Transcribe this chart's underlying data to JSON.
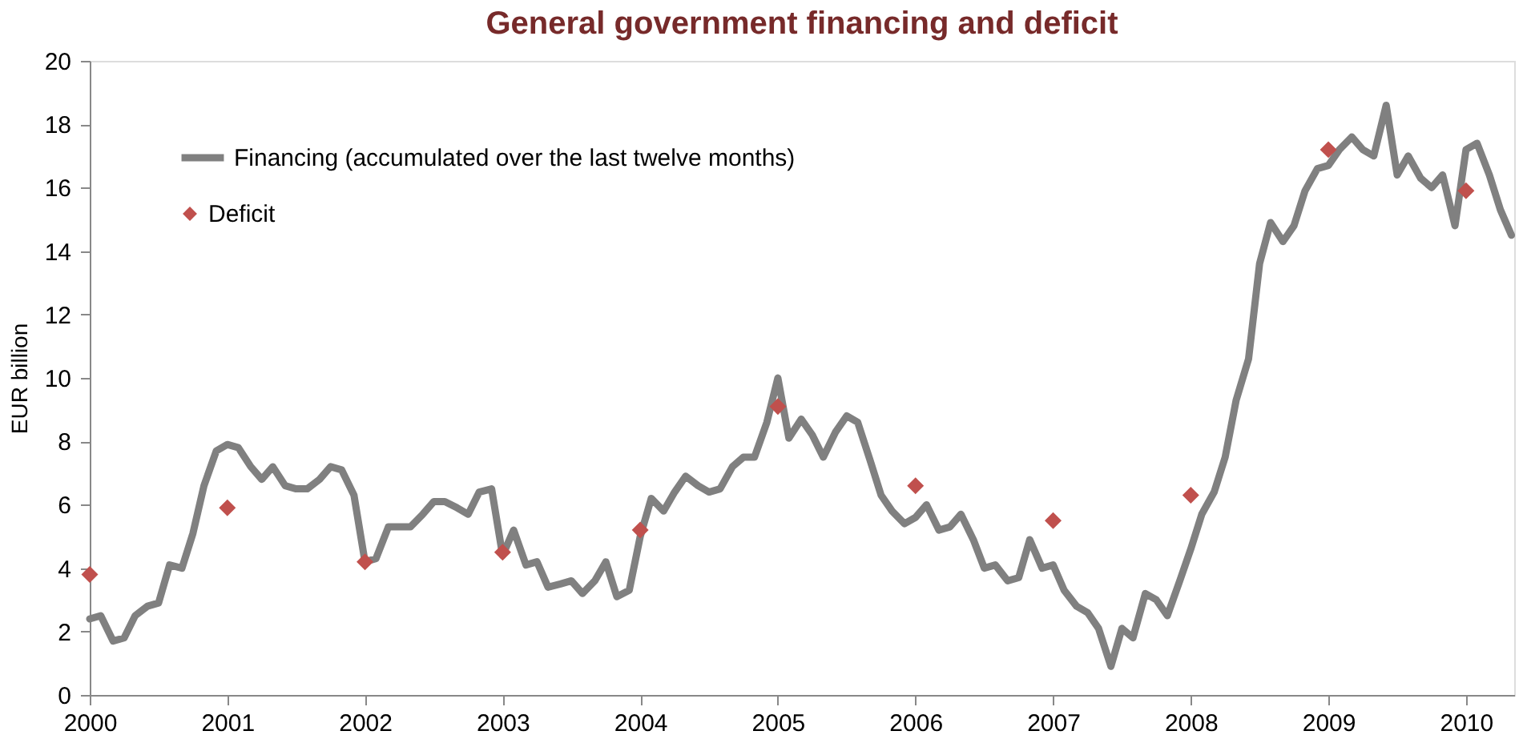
{
  "chart_data": {
    "type": "line",
    "title": "General government financing and deficit",
    "ylabel": "EUR billion",
    "xlim": [
      2000,
      2010.35
    ],
    "xticks": [
      2000,
      2001,
      2002,
      2003,
      2004,
      2005,
      2006,
      2007,
      2008,
      2009,
      2010
    ],
    "ylim": [
      0,
      20
    ],
    "yticks": [
      0,
      2,
      4,
      6,
      8,
      10,
      12,
      14,
      16,
      18,
      20
    ],
    "grid": false,
    "legend": "top left",
    "series": [
      {
        "name": "Financing (accumulated over the last twelve months)",
        "color": "#808080",
        "marker": "none",
        "line_style": "solid",
        "x": [
          2000.0,
          2000.08,
          2000.17,
          2000.25,
          2000.33,
          2000.42,
          2000.5,
          2000.58,
          2000.67,
          2000.75,
          2000.83,
          2000.92,
          2001.0,
          2001.08,
          2001.17,
          2001.25,
          2001.33,
          2001.42,
          2001.5,
          2001.58,
          2001.67,
          2001.75,
          2001.83,
          2001.92,
          2002.0,
          2002.08,
          2002.17,
          2002.25,
          2002.33,
          2002.42,
          2002.5,
          2002.58,
          2002.67,
          2002.75,
          2002.83,
          2002.92,
          2003.0,
          2003.08,
          2003.17,
          2003.25,
          2003.33,
          2003.42,
          2003.5,
          2003.58,
          2003.67,
          2003.75,
          2003.83,
          2003.92,
          2004.0,
          2004.08,
          2004.17,
          2004.25,
          2004.33,
          2004.42,
          2004.5,
          2004.58,
          2004.67,
          2004.75,
          2004.83,
          2004.92,
          2005.0,
          2005.08,
          2005.17,
          2005.25,
          2005.33,
          2005.42,
          2005.5,
          2005.58,
          2005.67,
          2005.75,
          2005.83,
          2005.92,
          2006.0,
          2006.08,
          2006.17,
          2006.25,
          2006.33,
          2006.42,
          2006.5,
          2006.58,
          2006.67,
          2006.75,
          2006.83,
          2006.92,
          2007.0,
          2007.08,
          2007.17,
          2007.25,
          2007.33,
          2007.42,
          2007.5,
          2007.58,
          2007.67,
          2007.75,
          2007.83,
          2007.92,
          2008.0,
          2008.08,
          2008.17,
          2008.25,
          2008.33,
          2008.42,
          2008.5,
          2008.58,
          2008.67,
          2008.75,
          2008.83,
          2008.92,
          2009.0,
          2009.08,
          2009.17,
          2009.25,
          2009.33,
          2009.42,
          2009.5,
          2009.58,
          2009.67,
          2009.75,
          2009.83,
          2009.92,
          2010.0,
          2010.08,
          2010.17,
          2010.25,
          2010.33
        ],
        "values": [
          2.4,
          2.5,
          1.7,
          1.8,
          2.5,
          2.8,
          2.9,
          4.1,
          4.0,
          5.1,
          6.6,
          7.7,
          7.9,
          7.8,
          7.2,
          6.8,
          7.2,
          6.6,
          6.5,
          6.5,
          6.8,
          7.2,
          7.1,
          6.3,
          4.2,
          4.3,
          5.3,
          5.3,
          5.3,
          5.7,
          6.1,
          6.1,
          5.9,
          5.7,
          6.4,
          6.5,
          4.4,
          5.2,
          4.1,
          4.2,
          3.4,
          3.5,
          3.6,
          3.2,
          3.6,
          4.2,
          3.1,
          3.3,
          5.0,
          6.2,
          5.8,
          6.4,
          6.9,
          6.6,
          6.4,
          6.5,
          7.2,
          7.5,
          7.5,
          8.6,
          10.0,
          8.1,
          8.7,
          8.2,
          7.5,
          8.3,
          8.8,
          8.6,
          7.4,
          6.3,
          5.8,
          5.4,
          5.6,
          6.0,
          5.2,
          5.3,
          5.7,
          4.9,
          4.0,
          4.1,
          3.6,
          3.7,
          4.9,
          4.0,
          4.1,
          3.3,
          2.8,
          2.6,
          2.1,
          0.9,
          2.1,
          1.8,
          3.2,
          3.0,
          2.5,
          3.6,
          4.6,
          5.7,
          6.4,
          7.5,
          9.3,
          10.6,
          13.6,
          14.9,
          14.3,
          14.8,
          15.9,
          16.6,
          16.7,
          17.2,
          17.6,
          17.2,
          17.0,
          18.6,
          16.4,
          17.0,
          16.3,
          16.0,
          16.4,
          14.8,
          17.2,
          17.4,
          16.4,
          15.3,
          14.5
        ]
      },
      {
        "name": "Deficit",
        "type": "scatter",
        "color": "#c0504d",
        "marker": "diamond",
        "x": [
          2000,
          2001,
          2002,
          2003,
          2004,
          2005,
          2006,
          2007,
          2008,
          2009,
          2010
        ],
        "values": [
          3.8,
          5.9,
          4.2,
          4.5,
          5.2,
          9.1,
          6.6,
          5.5,
          6.3,
          17.2,
          15.9
        ]
      }
    ]
  }
}
